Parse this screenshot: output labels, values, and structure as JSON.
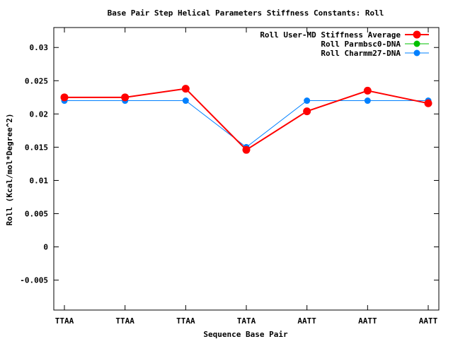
{
  "chart_data": {
    "type": "line",
    "title": "Base Pair Step Helical Parameters Stiffness Constants: Roll",
    "xlabel": "Sequence Base Pair",
    "ylabel": "Roll (Kcal/mol*Degree^2)",
    "categories": [
      "TTAA",
      "TTAA",
      "TTAA",
      "TATA",
      "AATT",
      "AATT",
      "AATT"
    ],
    "ylim": [
      -0.0095,
      0.033
    ],
    "yticks": [
      -0.005,
      0,
      0.005,
      0.01,
      0.015,
      0.02,
      0.025,
      0.03
    ],
    "ytick_labels": [
      "-0.005",
      "0",
      "0.005",
      "0.01",
      "0.015",
      "0.02",
      "0.025",
      "0.03"
    ],
    "grid": false,
    "legend_position": "top-right",
    "series": [
      {
        "name": "Roll User-MD Stiffness Average",
        "color": "#ff0000",
        "values": [
          0.0225,
          0.0225,
          0.0238,
          0.0146,
          0.0204,
          0.0235,
          0.0216
        ]
      },
      {
        "name": "Roll Parmbsc0-DNA",
        "color": "#00c000",
        "values": [
          0.0225,
          0.0225,
          0.0238,
          0.0146,
          0.0204,
          0.0235,
          0.0216
        ]
      },
      {
        "name": "Roll Charmm27-DNA",
        "color": "#0080ff",
        "values": [
          0.022,
          0.022,
          0.022,
          0.015,
          0.022,
          0.022,
          0.022
        ]
      }
    ]
  }
}
